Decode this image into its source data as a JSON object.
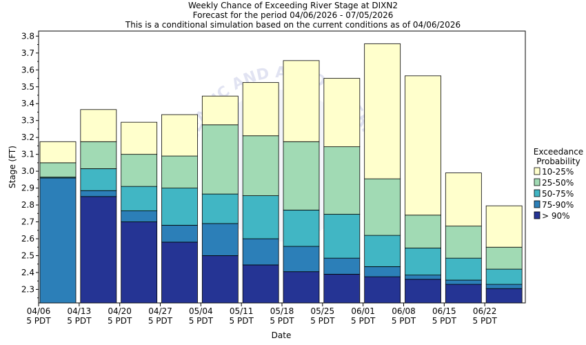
{
  "chart_data": {
    "type": "bar",
    "stacked": true,
    "title": "Weekly Chance of Exceeding River Stage at DIXN2",
    "subtitle": "Forecast for the period 04/06/2026 - 07/05/2026",
    "subtitle2": "This is a conditional simulation based on the current conditions as of 04/06/2026",
    "xlabel": "Date",
    "ylabel": "Stage (FT)",
    "ylim": [
      2.22,
      3.83
    ],
    "yticks": [
      "2.3",
      "2.4",
      "2.5",
      "2.6",
      "2.7",
      "2.8",
      "2.9",
      "3.0",
      "3.1",
      "3.2",
      "3.3",
      "3.4",
      "3.5",
      "3.6",
      "3.7",
      "3.8"
    ],
    "x_ticks": [
      {
        "l1": "04/06",
        "l2": "5 PDT"
      },
      {
        "l1": "04/13",
        "l2": "5 PDT"
      },
      {
        "l1": "04/20",
        "l2": "5 PDT"
      },
      {
        "l1": "04/27",
        "l2": "5 PDT"
      },
      {
        "l1": "05/04",
        "l2": "5 PDT"
      },
      {
        "l1": "05/11",
        "l2": "5 PDT"
      },
      {
        "l1": "05/18",
        "l2": "5 PDT"
      },
      {
        "l1": "05/25",
        "l2": "5 PDT"
      },
      {
        "l1": "06/01",
        "l2": "5 PDT"
      },
      {
        "l1": "06/08",
        "l2": "5 PDT"
      },
      {
        "l1": "06/15",
        "l2": "5 PDT"
      },
      {
        "l1": "06/22",
        "l2": "5 PDT"
      }
    ],
    "weeks": [
      {
        "bounds": [
          2.96,
          2.965,
          3.05,
          3.175
        ]
      },
      {
        "bounds": [
          2.85,
          2.885,
          3.015,
          3.175,
          3.365
        ]
      },
      {
        "bounds": [
          2.7,
          2.765,
          2.91,
          3.1,
          3.29
        ]
      },
      {
        "bounds": [
          2.58,
          2.68,
          2.9,
          3.09,
          3.335
        ]
      },
      {
        "bounds": [
          2.5,
          2.69,
          2.865,
          3.275,
          3.445
        ]
      },
      {
        "bounds": [
          2.445,
          2.6,
          2.855,
          3.21,
          3.525
        ]
      },
      {
        "bounds": [
          2.405,
          2.555,
          2.77,
          3.175,
          3.655
        ]
      },
      {
        "bounds": [
          2.39,
          2.485,
          2.745,
          3.145,
          3.55
        ]
      },
      {
        "bounds": [
          2.375,
          2.435,
          2.62,
          2.955,
          3.755
        ]
      },
      {
        "bounds": [
          2.36,
          2.385,
          2.545,
          2.74,
          3.565
        ]
      },
      {
        "bounds": [
          2.33,
          2.355,
          2.485,
          2.675,
          2.99
        ]
      },
      {
        "bounds": [
          2.305,
          2.33,
          2.42,
          2.55,
          2.795
        ]
      }
    ],
    "legend": {
      "title1": "Exceedance",
      "title2": "Probability",
      "position": "right",
      "items": [
        {
          "label": "10-25%",
          "color": "#ffffcc"
        },
        {
          "label": "25-50%",
          "color": "#a1dab4"
        },
        {
          "label": "50-75%",
          "color": "#41b6c4"
        },
        {
          "label": "75-90%",
          "color": "#2c7fb8"
        },
        {
          "label": "> 90%",
          "color": "#253494"
        }
      ]
    },
    "watermark": "CEANIC AND ATMOSPHERIC"
  }
}
